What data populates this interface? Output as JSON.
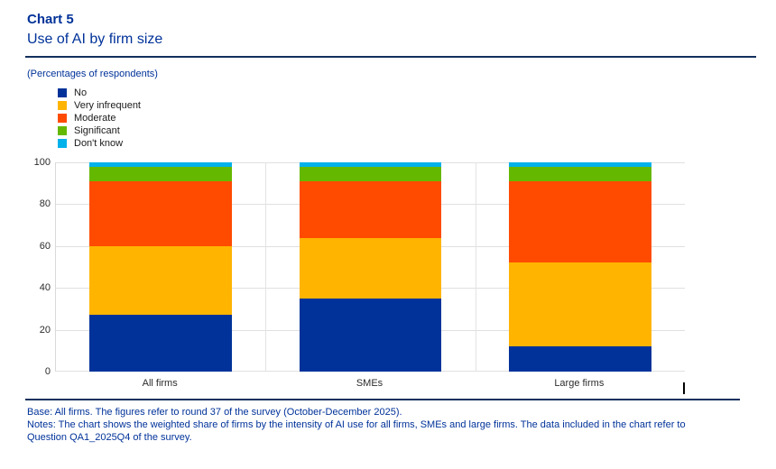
{
  "header": {
    "kicker": "Chart 5",
    "title": "Use of AI by firm size",
    "unit_note": "(Percentages of respondents)"
  },
  "chart_data": {
    "type": "bar",
    "stacked": true,
    "title": "Use of AI by firm size",
    "xlabel": "",
    "ylabel": "Percentages of respondents",
    "ylim": [
      0,
      100
    ],
    "yticks": [
      0,
      20,
      40,
      60,
      80,
      100
    ],
    "grid": true,
    "legend_position": "top-left",
    "categories": [
      "All firms",
      "SMEs",
      "Large firms"
    ],
    "series": [
      {
        "name": "No",
        "color": "#003299",
        "values": [
          27,
          35,
          12
        ]
      },
      {
        "name": "Very infrequent",
        "color": "#ffb400",
        "values": [
          33,
          29,
          40
        ]
      },
      {
        "name": "Moderate",
        "color": "#ff4b00",
        "values": [
          31,
          27,
          39
        ]
      },
      {
        "name": "Significant",
        "color": "#65b800",
        "values": [
          7,
          7,
          7
        ]
      },
      {
        "name": "Don't know",
        "color": "#00b1ea",
        "values": [
          2,
          2,
          2
        ]
      }
    ]
  },
  "footer": {
    "base": "Base: All firms. The figures refer to round 37 of the survey (October-December 2025).",
    "notes": "Notes: The chart shows the weighted share of firms by the intensity of AI use for all firms, SMEs and large firms. The data included in the chart refer to Question QA1_2025Q4 of the survey."
  }
}
